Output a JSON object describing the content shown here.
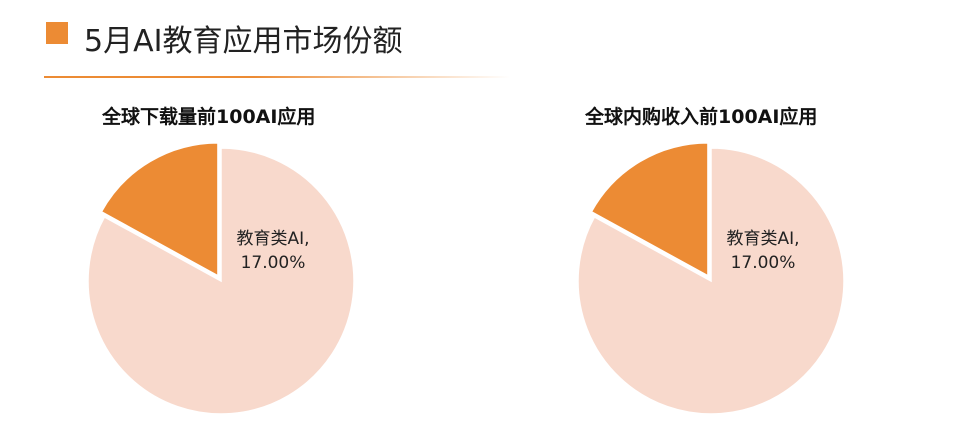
{
  "header": {
    "title": "5月AI教育应用市场份额"
  },
  "colors": {
    "accent": "#ec8b34",
    "slice_main": "#f8d9cc",
    "slice_highlight": "#ec8b34"
  },
  "chart_data": [
    {
      "type": "pie",
      "title": "全球下载量前100AI应用",
      "slices": [
        {
          "name": "教育类AI",
          "value": 17.0,
          "label_line1": "教育类AI,",
          "label_line2": "17.00%",
          "color": "#ec8b34",
          "exploded": true
        },
        {
          "name": "",
          "value": 83.0,
          "color": "#f8d9cc",
          "exploded": false
        }
      ]
    },
    {
      "type": "pie",
      "title": "全球内购收入前100AI应用",
      "slices": [
        {
          "name": "教育类AI",
          "value": 17.0,
          "label_line1": "教育类AI,",
          "label_line2": "17.00%",
          "color": "#ec8b34",
          "exploded": true
        },
        {
          "name": "",
          "value": 83.0,
          "color": "#f8d9cc",
          "exploded": false
        }
      ]
    }
  ]
}
